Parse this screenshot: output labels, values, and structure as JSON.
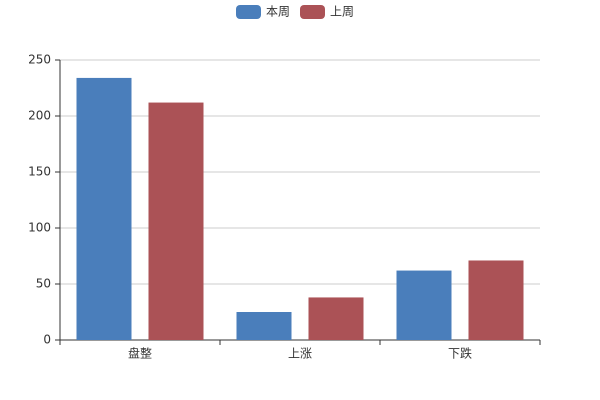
{
  "chart_data": {
    "type": "bar",
    "categories": [
      "盘整",
      "上涨",
      "下跌"
    ],
    "series": [
      {
        "name": "本周",
        "color": "#4a7ebb",
        "values": [
          234,
          25,
          62
        ]
      },
      {
        "name": "上周",
        "color": "#ab5256",
        "values": [
          212,
          38,
          71
        ]
      }
    ],
    "ylim": [
      0,
      250
    ],
    "yticks": [
      0,
      50,
      100,
      150,
      200,
      250
    ],
    "grid": true,
    "legend": "top"
  }
}
